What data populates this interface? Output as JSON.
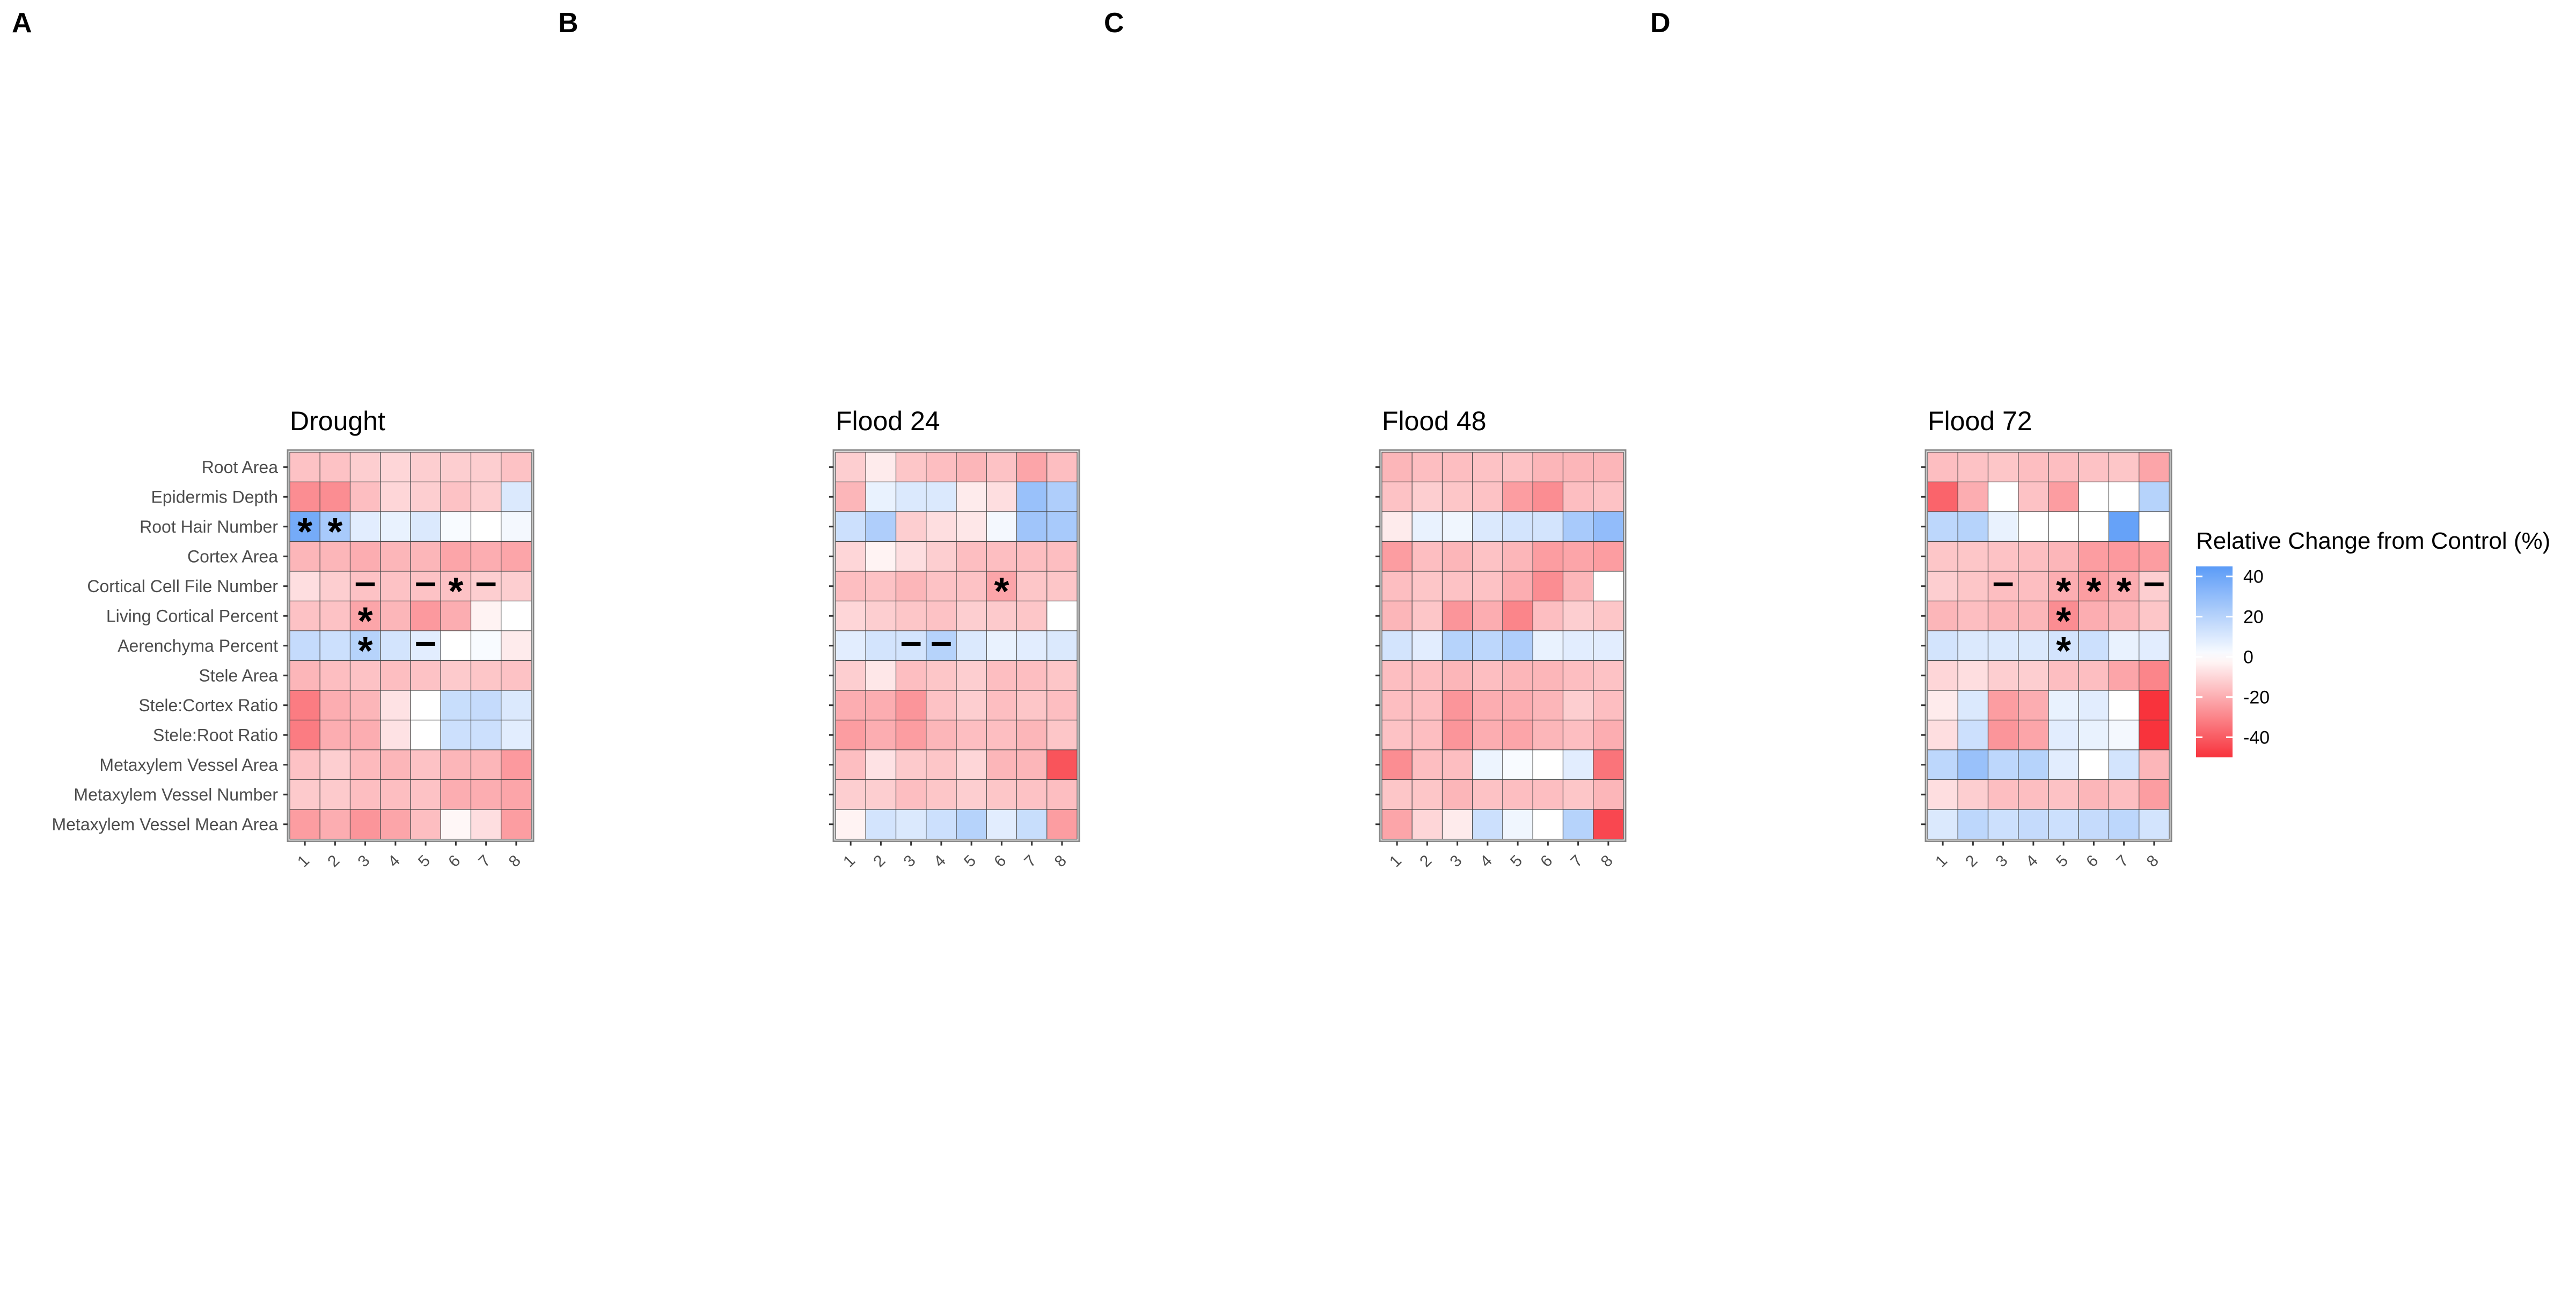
{
  "chart_data": {
    "type": "heatmap",
    "rows": [
      "Root Area",
      "Epidermis Depth",
      "Root Hair Number",
      "Cortex Area",
      "Cortical Cell File Number",
      "Living Cortical Percent",
      "Aerenchyma Percent",
      "Stele Area",
      "Stele:Cortex Ratio",
      "Stele:Root Ratio",
      "Metaxylem Vessel Area",
      "Metaxylem Vessel Number",
      "Metaxylem Vessel Mean Area"
    ],
    "columns": [
      "1",
      "2",
      "3",
      "4",
      "5",
      "6",
      "7",
      "8"
    ],
    "panels": [
      {
        "letter": "A",
        "title": "Drought",
        "values": [
          [
            -15,
            -15,
            -12,
            -10,
            -12,
            -12,
            -12,
            -15
          ],
          [
            -28,
            -28,
            -16,
            -10,
            -12,
            -15,
            -12,
            10
          ],
          [
            38,
            24,
            8,
            6,
            10,
            2,
            0,
            3
          ],
          [
            -18,
            -18,
            -20,
            -18,
            -18,
            -22,
            -20,
            -22
          ],
          [
            -8,
            -12,
            -15,
            -15,
            -15,
            -15,
            -12,
            -12
          ],
          [
            -15,
            -15,
            -22,
            -18,
            -25,
            -20,
            -3,
            0
          ],
          [
            16,
            14,
            20,
            12,
            8,
            0,
            2,
            -5
          ],
          [
            -18,
            -16,
            -15,
            -16,
            -15,
            -13,
            -14,
            -15
          ],
          [
            -32,
            -20,
            -18,
            -7,
            0,
            15,
            16,
            10
          ],
          [
            -32,
            -20,
            -20,
            -7,
            0,
            14,
            14,
            8
          ],
          [
            -15,
            -12,
            -17,
            -18,
            -15,
            -18,
            -18,
            -25
          ],
          [
            -13,
            -13,
            -16,
            -16,
            -15,
            -20,
            -20,
            -22
          ],
          [
            -24,
            -20,
            -26,
            -22,
            -16,
            -2,
            -8,
            -24
          ]
        ],
        "markers": [
          {
            "row": 2,
            "col": 0,
            "symbol": "*"
          },
          {
            "row": 2,
            "col": 1,
            "symbol": "*"
          },
          {
            "row": 4,
            "col": 2,
            "symbol": "–"
          },
          {
            "row": 4,
            "col": 4,
            "symbol": "–"
          },
          {
            "row": 4,
            "col": 5,
            "symbol": "*"
          },
          {
            "row": 4,
            "col": 6,
            "symbol": "–"
          },
          {
            "row": 5,
            "col": 2,
            "symbol": "*"
          },
          {
            "row": 6,
            "col": 2,
            "symbol": "*"
          },
          {
            "row": 6,
            "col": 4,
            "symbol": "–"
          }
        ]
      },
      {
        "letter": "B",
        "title": "Flood 24",
        "values": [
          [
            -12,
            -5,
            -14,
            -16,
            -18,
            -15,
            -22,
            -16
          ],
          [
            -18,
            6,
            10,
            10,
            -5,
            -8,
            28,
            22
          ],
          [
            14,
            22,
            -12,
            -8,
            -6,
            3,
            26,
            24
          ],
          [
            -10,
            -3,
            -8,
            -12,
            -16,
            -16,
            -16,
            -16
          ],
          [
            -16,
            -15,
            -18,
            -15,
            -15,
            -22,
            -14,
            -14
          ],
          [
            -10,
            -12,
            -14,
            -15,
            -12,
            -13,
            -14,
            0
          ],
          [
            8,
            12,
            12,
            20,
            10,
            6,
            8,
            10
          ],
          [
            -12,
            -6,
            -16,
            -14,
            -12,
            -16,
            -16,
            -14
          ],
          [
            -20,
            -20,
            -26,
            -15,
            -12,
            -16,
            -14,
            -16
          ],
          [
            -24,
            -20,
            -24,
            -18,
            -16,
            -16,
            -18,
            -14
          ],
          [
            -16,
            -7,
            -13,
            -14,
            -10,
            -18,
            -18,
            -42
          ],
          [
            -12,
            -12,
            -16,
            -14,
            -12,
            -14,
            -15,
            -16
          ],
          [
            -3,
            12,
            10,
            14,
            20,
            8,
            15,
            -24
          ]
        ],
        "markers": [
          {
            "row": 4,
            "col": 5,
            "symbol": "*"
          },
          {
            "row": 6,
            "col": 2,
            "symbol": "–"
          },
          {
            "row": 6,
            "col": 3,
            "symbol": "–"
          }
        ]
      },
      {
        "letter": "C",
        "title": "Flood 48",
        "values": [
          [
            -18,
            -16,
            -16,
            -15,
            -15,
            -18,
            -18,
            -18
          ],
          [
            -15,
            -12,
            -14,
            -15,
            -24,
            -28,
            -16,
            -15
          ],
          [
            -5,
            6,
            4,
            10,
            12,
            12,
            24,
            30
          ],
          [
            -24,
            -16,
            -18,
            -15,
            -18,
            -24,
            -22,
            -24
          ],
          [
            -16,
            -14,
            -15,
            -15,
            -20,
            -28,
            -18,
            0
          ],
          [
            -18,
            -14,
            -26,
            -20,
            -30,
            -16,
            -12,
            -14
          ],
          [
            12,
            8,
            20,
            18,
            22,
            6,
            8,
            8
          ],
          [
            -16,
            -16,
            -18,
            -16,
            -18,
            -18,
            -16,
            -15
          ],
          [
            -16,
            -16,
            -26,
            -20,
            -20,
            -18,
            -12,
            -16
          ],
          [
            -15,
            -16,
            -26,
            -20,
            -22,
            -18,
            -16,
            -20
          ],
          [
            -28,
            -16,
            -16,
            5,
            2,
            0,
            8,
            -34
          ],
          [
            -14,
            -14,
            -18,
            -15,
            -16,
            -16,
            -14,
            -18
          ],
          [
            -22,
            -10,
            -5,
            14,
            4,
            0,
            20,
            -45
          ]
        ],
        "markers": []
      },
      {
        "letter": "D",
        "title": "Flood 72",
        "values": [
          [
            -16,
            -15,
            -14,
            -16,
            -16,
            -15,
            -14,
            -22
          ],
          [
            -38,
            -20,
            0,
            -15,
            -24,
            0,
            0,
            20
          ],
          [
            18,
            20,
            6,
            0,
            0,
            0,
            42,
            0
          ],
          [
            -14,
            -14,
            -15,
            -16,
            -18,
            -24,
            -25,
            -24
          ],
          [
            -12,
            -14,
            -16,
            -16,
            -20,
            -24,
            -20,
            -12
          ],
          [
            -18,
            -16,
            -18,
            -18,
            -28,
            -20,
            -18,
            -14
          ],
          [
            12,
            10,
            10,
            10,
            12,
            14,
            6,
            8
          ],
          [
            -10,
            -8,
            -12,
            -12,
            -16,
            -16,
            -22,
            -30
          ],
          [
            -5,
            10,
            -24,
            -20,
            6,
            8,
            0,
            -50
          ],
          [
            -8,
            14,
            -26,
            -22,
            8,
            6,
            3,
            -50
          ],
          [
            18,
            28,
            18,
            20,
            8,
            0,
            12,
            -18
          ],
          [
            -8,
            -12,
            -16,
            -16,
            -15,
            -18,
            -16,
            -24
          ],
          [
            10,
            18,
            14,
            16,
            14,
            16,
            18,
            12
          ]
        ],
        "markers": [
          {
            "row": 4,
            "col": 2,
            "symbol": "–"
          },
          {
            "row": 4,
            "col": 4,
            "symbol": "*"
          },
          {
            "row": 4,
            "col": 5,
            "symbol": "*"
          },
          {
            "row": 4,
            "col": 6,
            "symbol": "*"
          },
          {
            "row": 4,
            "col": 7,
            "symbol": "–"
          },
          {
            "row": 5,
            "col": 4,
            "symbol": "*"
          },
          {
            "row": 6,
            "col": 4,
            "symbol": "*"
          }
        ]
      }
    ],
    "legend": {
      "title": "Relative Change from Control (%)",
      "ticks": [
        40,
        20,
        0,
        -20,
        -40
      ],
      "limits": [
        -50,
        45
      ],
      "colors": {
        "low": "#F8333C",
        "mid": "#FFFFFF",
        "high": "#5B9BF7"
      }
    }
  }
}
